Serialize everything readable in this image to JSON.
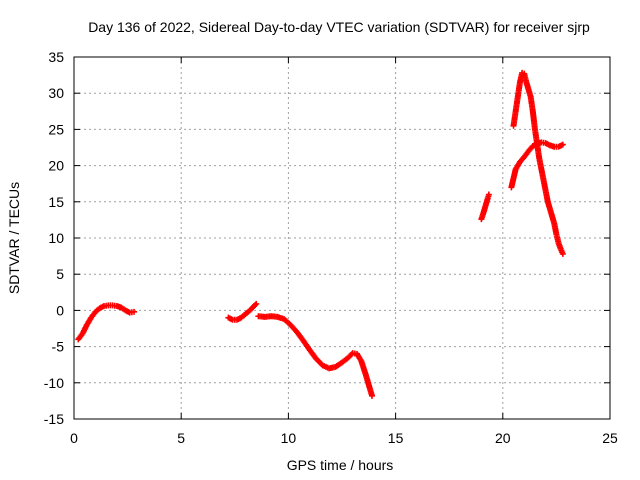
{
  "chart_data": {
    "type": "scatter",
    "title": "Day 136 of 2022, Sidereal Day-to-day VTEC variation (SDTVAR) for receiver sjrp",
    "xlabel": "GPS time / hours",
    "ylabel": "SDTVAR / TECUs",
    "xlim": [
      0,
      25
    ],
    "ylim": [
      -15,
      35
    ],
    "xticks": [
      0,
      5,
      10,
      15,
      20,
      25
    ],
    "yticks": [
      -15,
      -10,
      -5,
      0,
      5,
      10,
      15,
      20,
      25,
      30,
      35
    ],
    "grid": true,
    "marker": "+",
    "marker_color": "#ff0000",
    "series": [
      {
        "name": "segment-1",
        "points": [
          [
            0.2,
            -4.0
          ],
          [
            0.4,
            -3.2
          ],
          [
            0.6,
            -2.0
          ],
          [
            0.8,
            -1.0
          ],
          [
            1.0,
            -0.2
          ],
          [
            1.2,
            0.3
          ],
          [
            1.4,
            0.6
          ],
          [
            1.6,
            0.7
          ],
          [
            1.8,
            0.7
          ],
          [
            2.0,
            0.6
          ],
          [
            2.2,
            0.4
          ],
          [
            2.4,
            0.0
          ],
          [
            2.6,
            -0.3
          ],
          [
            2.8,
            -0.2
          ]
        ]
      },
      {
        "name": "segment-2",
        "points": [
          [
            7.2,
            -1.0
          ],
          [
            7.4,
            -1.3
          ],
          [
            7.6,
            -1.3
          ],
          [
            7.8,
            -1.0
          ],
          [
            8.0,
            -0.5
          ],
          [
            8.2,
            0.0
          ],
          [
            8.4,
            0.6
          ],
          [
            8.5,
            0.9
          ]
        ]
      },
      {
        "name": "segment-3",
        "points": [
          [
            8.6,
            -0.8
          ],
          [
            8.9,
            -0.9
          ],
          [
            9.2,
            -0.8
          ],
          [
            9.5,
            -0.9
          ],
          [
            9.8,
            -1.2
          ],
          [
            10.1,
            -2.0
          ],
          [
            10.4,
            -3.0
          ],
          [
            10.7,
            -4.2
          ],
          [
            11.0,
            -5.5
          ],
          [
            11.3,
            -6.7
          ],
          [
            11.6,
            -7.6
          ],
          [
            11.9,
            -8.0
          ],
          [
            12.2,
            -7.8
          ],
          [
            12.5,
            -7.2
          ],
          [
            12.8,
            -6.5
          ],
          [
            13.0,
            -5.9
          ],
          [
            13.2,
            -6.0
          ],
          [
            13.4,
            -7.0
          ],
          [
            13.6,
            -8.8
          ],
          [
            13.8,
            -10.8
          ],
          [
            13.9,
            -11.8
          ]
        ]
      },
      {
        "name": "segment-4",
        "points": [
          [
            19.0,
            12.6
          ],
          [
            19.1,
            13.5
          ],
          [
            19.2,
            14.5
          ],
          [
            19.3,
            15.5
          ],
          [
            19.35,
            16.0
          ]
        ]
      },
      {
        "name": "segment-5",
        "points": [
          [
            20.4,
            17.0
          ],
          [
            20.6,
            19.5
          ],
          [
            20.8,
            20.5
          ],
          [
            21.0,
            21.2
          ],
          [
            21.2,
            22.0
          ],
          [
            21.4,
            22.7
          ],
          [
            21.6,
            23.0
          ],
          [
            21.8,
            23.2
          ],
          [
            22.0,
            23.1
          ],
          [
            22.2,
            22.8
          ],
          [
            22.4,
            22.6
          ],
          [
            22.6,
            22.6
          ],
          [
            22.8,
            22.9
          ]
        ]
      },
      {
        "name": "segment-6",
        "points": [
          [
            20.5,
            25.5
          ],
          [
            20.6,
            27.5
          ],
          [
            20.7,
            29.5
          ],
          [
            20.8,
            31.5
          ],
          [
            20.9,
            32.8
          ],
          [
            21.0,
            32.7
          ],
          [
            21.1,
            31.5
          ],
          [
            21.3,
            29.5
          ],
          [
            21.4,
            27.5
          ],
          [
            21.5,
            25.0
          ],
          [
            21.6,
            23.0
          ],
          [
            21.7,
            21.0
          ],
          [
            21.8,
            19.5
          ],
          [
            21.9,
            18.0
          ],
          [
            22.0,
            16.5
          ],
          [
            22.1,
            15.0
          ],
          [
            22.2,
            14.0
          ],
          [
            22.3,
            13.0
          ],
          [
            22.4,
            12.0
          ],
          [
            22.5,
            10.5
          ],
          [
            22.6,
            9.3
          ],
          [
            22.7,
            8.5
          ],
          [
            22.8,
            7.8
          ]
        ]
      }
    ]
  }
}
